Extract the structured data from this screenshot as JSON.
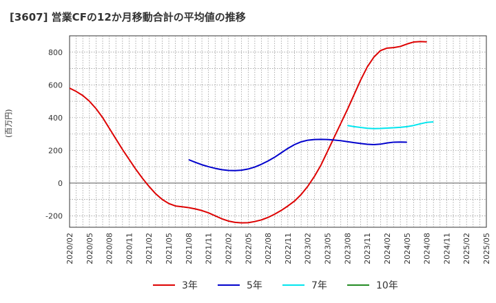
{
  "chart_data": {
    "type": "line",
    "title": "[3607]  営業CFの12か月移動合計の平均値の推移",
    "ylabel": "(百万円)",
    "ylim": [
      -270,
      900
    ],
    "yticks": [
      800,
      600,
      400,
      200,
      0,
      -200
    ],
    "xticks": [
      "2020/02",
      "2020/05",
      "2020/08",
      "2020/11",
      "2021/02",
      "2021/05",
      "2021/08",
      "2021/11",
      "2022/02",
      "2022/05",
      "2022/08",
      "2022/11",
      "2023/02",
      "2023/05",
      "2023/08",
      "2023/11",
      "2024/02",
      "2024/05",
      "2024/08",
      "2024/11",
      "2025/02",
      "2025/05"
    ],
    "grid": true,
    "legend_position": "bottom",
    "colors": {
      "3年": "#dd0000",
      "5年": "#0000cc",
      "7年": "#00e5ee",
      "10年": "#228b22"
    },
    "series": [
      {
        "name": "3年",
        "points": [
          [
            "2020/02",
            580
          ],
          [
            "2020/03",
            560
          ],
          [
            "2020/04",
            535
          ],
          [
            "2020/05",
            500
          ],
          [
            "2020/06",
            455
          ],
          [
            "2020/07",
            400
          ],
          [
            "2020/08",
            335
          ],
          [
            "2020/09",
            270
          ],
          [
            "2020/10",
            205
          ],
          [
            "2020/11",
            145
          ],
          [
            "2020/12",
            85
          ],
          [
            "2021/01",
            30
          ],
          [
            "2021/02",
            -20
          ],
          [
            "2021/03",
            -65
          ],
          [
            "2021/04",
            -100
          ],
          [
            "2021/05",
            -125
          ],
          [
            "2021/06",
            -140
          ],
          [
            "2021/07",
            -145
          ],
          [
            "2021/08",
            -150
          ],
          [
            "2021/09",
            -158
          ],
          [
            "2021/10",
            -168
          ],
          [
            "2021/11",
            -182
          ],
          [
            "2021/12",
            -200
          ],
          [
            "2022/01",
            -218
          ],
          [
            "2022/02",
            -232
          ],
          [
            "2022/03",
            -240
          ],
          [
            "2022/04",
            -243
          ],
          [
            "2022/05",
            -242
          ],
          [
            "2022/06",
            -235
          ],
          [
            "2022/07",
            -225
          ],
          [
            "2022/08",
            -210
          ],
          [
            "2022/09",
            -190
          ],
          [
            "2022/10",
            -167
          ],
          [
            "2022/11",
            -140
          ],
          [
            "2022/12",
            -110
          ],
          [
            "2023/01",
            -70
          ],
          [
            "2023/02",
            -20
          ],
          [
            "2023/03",
            40
          ],
          [
            "2023/04",
            110
          ],
          [
            "2023/05",
            195
          ],
          [
            "2023/06",
            280
          ],
          [
            "2023/07",
            365
          ],
          [
            "2023/08",
            450
          ],
          [
            "2023/09",
            540
          ],
          [
            "2023/10",
            630
          ],
          [
            "2023/11",
            710
          ],
          [
            "2023/12",
            770
          ],
          [
            "2024/01",
            810
          ],
          [
            "2024/02",
            825
          ],
          [
            "2024/03",
            828
          ],
          [
            "2024/04",
            835
          ],
          [
            "2024/05",
            850
          ],
          [
            "2024/06",
            862
          ],
          [
            "2024/07",
            865
          ],
          [
            "2024/08",
            863
          ]
        ]
      },
      {
        "name": "5年",
        "points": [
          [
            "2021/08",
            143
          ],
          [
            "2021/09",
            127
          ],
          [
            "2021/10",
            112
          ],
          [
            "2021/11",
            100
          ],
          [
            "2021/12",
            90
          ],
          [
            "2022/01",
            82
          ],
          [
            "2022/02",
            77
          ],
          [
            "2022/03",
            76
          ],
          [
            "2022/04",
            79
          ],
          [
            "2022/05",
            86
          ],
          [
            "2022/06",
            98
          ],
          [
            "2022/07",
            115
          ],
          [
            "2022/08",
            135
          ],
          [
            "2022/09",
            158
          ],
          [
            "2022/10",
            185
          ],
          [
            "2022/11",
            212
          ],
          [
            "2022/12",
            235
          ],
          [
            "2023/01",
            252
          ],
          [
            "2023/02",
            262
          ],
          [
            "2023/03",
            266
          ],
          [
            "2023/04",
            267
          ],
          [
            "2023/05",
            266
          ],
          [
            "2023/06",
            263
          ],
          [
            "2023/07",
            259
          ],
          [
            "2023/08",
            253
          ],
          [
            "2023/09",
            247
          ],
          [
            "2023/10",
            242
          ],
          [
            "2023/11",
            237
          ],
          [
            "2023/12",
            235
          ],
          [
            "2024/01",
            238
          ],
          [
            "2024/02",
            245
          ],
          [
            "2024/03",
            250
          ],
          [
            "2024/04",
            251
          ],
          [
            "2024/05",
            250
          ]
        ]
      },
      {
        "name": "7年",
        "points": [
          [
            "2023/08",
            352
          ],
          [
            "2023/09",
            345
          ],
          [
            "2023/10",
            340
          ],
          [
            "2023/11",
            335
          ],
          [
            "2023/12",
            333
          ],
          [
            "2024/01",
            334
          ],
          [
            "2024/02",
            336
          ],
          [
            "2024/03",
            338
          ],
          [
            "2024/04",
            341
          ],
          [
            "2024/05",
            345
          ],
          [
            "2024/06",
            352
          ],
          [
            "2024/07",
            362
          ],
          [
            "2024/08",
            371
          ],
          [
            "2024/09",
            374
          ]
        ]
      },
      {
        "name": "10年",
        "points": []
      }
    ]
  }
}
